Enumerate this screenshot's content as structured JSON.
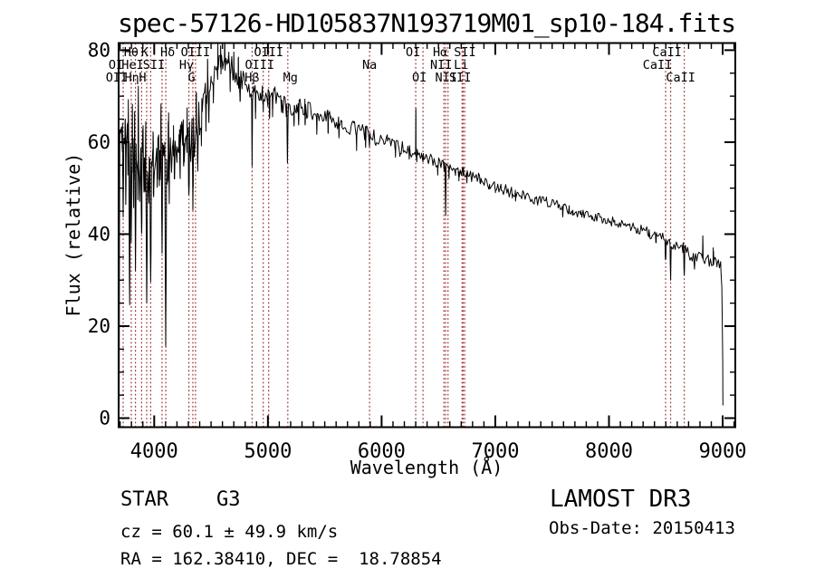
{
  "title": "spec-57126-HD105837N193719M01_sp10-184.fits",
  "colors": {
    "background": "#ffffff",
    "spectrum": "#000000",
    "frame": "#000000",
    "line_marker": "#9e3434"
  },
  "axes": {
    "x": {
      "label": "Wavelength (Å)",
      "major_ticks": [
        4000,
        5000,
        6000,
        7000,
        8000,
        9000
      ],
      "minor_start": 3700,
      "minor_end": 9100,
      "minor_step": 100
    },
    "y": {
      "label": "Flux (relative)",
      "major_ticks": [
        0,
        20,
        40,
        60,
        80
      ],
      "minor_start": 5,
      "minor_end": 80,
      "minor_step": 5
    }
  },
  "spectral_lines": {
    "rows": [
      {
        "y": 62,
        "items": [
          {
            "name": "Hθ",
            "wavelength": 3798,
            "dx": 0
          },
          {
            "name": "K",
            "wavelength": 3934,
            "dx": -2
          },
          {
            "name": "Hδ",
            "wavelength": 4102,
            "dx": 2
          },
          {
            "name": "OIII",
            "wavelength": 4363,
            "dx": 0
          },
          {
            "name": "OIII",
            "wavelength": 5007,
            "dx": 0
          },
          {
            "name": "OI",
            "wavelength": 6300,
            "dx": -3
          },
          {
            "name": "Hα",
            "wavelength": 6563,
            "dx": -6
          },
          {
            "name": "SII",
            "wavelength": 6717,
            "dx": 2
          },
          {
            "name": "CaII",
            "wavelength": 8542,
            "dx": -4
          }
        ]
      },
      {
        "y": 76,
        "items": [
          {
            "name": "OI",
            "wavelength": 3727,
            "dx": -8
          },
          {
            "name": "HeI",
            "wavelength": 3889,
            "dx": -10
          },
          {
            "name": "SII",
            "wavelength": 4069,
            "dx": -9
          },
          {
            "name": "Hγ",
            "wavelength": 4340,
            "dx": -7
          },
          {
            "name": "OIII",
            "wavelength": 4959,
            "dx": -4
          },
          {
            "name": "Na",
            "wavelength": 5894,
            "dx": 0
          },
          {
            "name": "NII",
            "wavelength": 6548,
            "dx": -3
          },
          {
            "name": "Li",
            "wavelength": 6708,
            "dx": -1
          },
          {
            "name": "CaII",
            "wavelength": 8498,
            "dx": -9
          }
        ]
      },
      {
        "y": 90,
        "items": [
          {
            "name": "OII",
            "wavelength": 3727,
            "dx": -7
          },
          {
            "name": "Hη",
            "wavelength": 3835,
            "dx": -4
          },
          {
            "name": "H",
            "wavelength": 3969,
            "dx": -9
          },
          {
            "name": "G",
            "wavelength": 4305,
            "dx": 3
          },
          {
            "name": "Hβ",
            "wavelength": 4861,
            "dx": 0
          },
          {
            "name": "Mg",
            "wavelength": 5175,
            "dx": 3
          },
          {
            "name": "OI",
            "wavelength": 6364,
            "dx": -4
          },
          {
            "name": "NII",
            "wavelength": 6584,
            "dx": -2
          },
          {
            "name": "SII",
            "wavelength": 6731,
            "dx": -5
          },
          {
            "name": "CaII",
            "wavelength": 8662,
            "dx": -4
          }
        ]
      }
    ]
  },
  "chart_data": {
    "type": "line",
    "title": "spec-57126-HD105837N193719M01_sp10-184.fits",
    "xlabel": "Wavelength (Å)",
    "ylabel": "Flux (relative)",
    "xlim": [
      3687,
      9111
    ],
    "ylim": [
      -1.97,
      81.55
    ],
    "range": [
      3692,
      9002
    ],
    "sample_step": 10,
    "continuum_anchors": [
      [
        3692,
        2
      ],
      [
        3694,
        35
      ],
      [
        3697,
        60
      ],
      [
        3720,
        60
      ],
      [
        3760,
        60
      ],
      [
        3800,
        57
      ],
      [
        3840,
        58
      ],
      [
        3880,
        56
      ],
      [
        3920,
        54
      ],
      [
        3960,
        53
      ],
      [
        4000,
        54
      ],
      [
        4040,
        57
      ],
      [
        4080,
        55
      ],
      [
        4120,
        56
      ],
      [
        4160,
        57
      ],
      [
        4200,
        58
      ],
      [
        4250,
        61
      ],
      [
        4300,
        59
      ],
      [
        4350,
        61
      ],
      [
        4400,
        66
      ],
      [
        4450,
        70
      ],
      [
        4500,
        73
      ],
      [
        4550,
        76
      ],
      [
        4600,
        78
      ],
      [
        4650,
        77
      ],
      [
        4700,
        75
      ],
      [
        4750,
        73.5
      ],
      [
        4800,
        72
      ],
      [
        4861,
        70.5
      ],
      [
        4930,
        70.5
      ],
      [
        5000,
        69.5
      ],
      [
        5060,
        70
      ],
      [
        5120,
        68.5
      ],
      [
        5175,
        67
      ],
      [
        5250,
        68
      ],
      [
        5350,
        67
      ],
      [
        5450,
        66
      ],
      [
        5550,
        65
      ],
      [
        5650,
        64
      ],
      [
        5750,
        63
      ],
      [
        5850,
        62
      ],
      [
        5950,
        61
      ],
      [
        6050,
        60
      ],
      [
        6150,
        59
      ],
      [
        6250,
        58
      ],
      [
        6350,
        57
      ],
      [
        6450,
        56
      ],
      [
        6550,
        55
      ],
      [
        6650,
        54
      ],
      [
        6750,
        53
      ],
      [
        6850,
        52
      ],
      [
        6950,
        51
      ],
      [
        7050,
        50
      ],
      [
        7150,
        49
      ],
      [
        7250,
        48.3
      ],
      [
        7350,
        47.5
      ],
      [
        7450,
        47
      ],
      [
        7550,
        46.2
      ],
      [
        7650,
        45.3
      ],
      [
        7750,
        44.6
      ],
      [
        7850,
        43.8
      ],
      [
        7950,
        43.2
      ],
      [
        8050,
        42.6
      ],
      [
        8150,
        41.8
      ],
      [
        8250,
        41.2
      ],
      [
        8350,
        40.5
      ],
      [
        8450,
        39.2
      ],
      [
        8550,
        37.8
      ],
      [
        8650,
        37
      ],
      [
        8750,
        35
      ],
      [
        8850,
        34.2
      ],
      [
        8950,
        33.6
      ],
      [
        8985,
        33
      ],
      [
        8995,
        25
      ],
      [
        9000,
        12
      ],
      [
        9002,
        3
      ]
    ],
    "absorption_features": [
      [
        3727,
        42,
        6
      ],
      [
        3750,
        48,
        5
      ],
      [
        3770,
        50,
        4
      ],
      [
        3784,
        23,
        6
      ],
      [
        3798,
        37,
        5
      ],
      [
        3819,
        47,
        4
      ],
      [
        3835,
        31,
        6
      ],
      [
        3856,
        49,
        4
      ],
      [
        3872,
        46,
        4
      ],
      [
        3889,
        39,
        5
      ],
      [
        3910,
        50,
        4
      ],
      [
        3934,
        24,
        7
      ],
      [
        3952,
        48,
        4
      ],
      [
        3969,
        29,
        7
      ],
      [
        3995,
        47,
        4
      ],
      [
        4026,
        49,
        4
      ],
      [
        4045,
        51,
        4
      ],
      [
        4069,
        36,
        5
      ],
      [
        4101,
        17,
        8
      ],
      [
        4132,
        47,
        4
      ],
      [
        4179,
        51,
        4
      ],
      [
        4227,
        52,
        4
      ],
      [
        4260,
        55,
        4
      ],
      [
        4305,
        49,
        6
      ],
      [
        4340,
        46,
        6
      ],
      [
        4383,
        55,
        4
      ],
      [
        4415,
        59,
        4
      ],
      [
        4455,
        63,
        4
      ],
      [
        4481,
        65,
        4
      ],
      [
        4520,
        69,
        3
      ],
      [
        4668,
        71,
        3
      ],
      [
        4755,
        69,
        3
      ],
      [
        4861,
        55.5,
        4
      ],
      [
        4891,
        65,
        3
      ],
      [
        4959,
        66.5,
        3
      ],
      [
        5015,
        65,
        3
      ],
      [
        5041,
        66,
        3
      ],
      [
        5172,
        55.5,
        6
      ],
      [
        5230,
        64,
        3
      ],
      [
        5270,
        63,
        4
      ],
      [
        5328,
        63,
        3
      ],
      [
        5430,
        62,
        3
      ],
      [
        5530,
        61.5,
        3
      ],
      [
        5625,
        60.5,
        3
      ],
      [
        5780,
        58.5,
        3
      ],
      [
        5860,
        59,
        3
      ],
      [
        5893,
        58.8,
        5
      ],
      [
        6122,
        56.5,
        3
      ],
      [
        6162,
        56.8,
        3
      ],
      [
        6243,
        56,
        3
      ],
      [
        6310,
        56,
        3
      ],
      [
        6364,
        55.5,
        3
      ],
      [
        6494,
        53,
        3
      ],
      [
        6563,
        44.5,
        5
      ],
      [
        6593,
        52.5,
        3
      ],
      [
        6680,
        52,
        3
      ],
      [
        6717,
        53,
        4
      ],
      [
        6750,
        51.5,
        3
      ],
      [
        6870,
        50.5,
        4
      ],
      [
        7000,
        49.5,
        3
      ],
      [
        7180,
        47.5,
        4
      ],
      [
        7594,
        43.8,
        5
      ],
      [
        7680,
        44,
        3
      ],
      [
        8413,
        37.8,
        4
      ],
      [
        8498,
        34,
        5
      ],
      [
        8542,
        30.5,
        5
      ],
      [
        8662,
        31,
        5
      ],
      [
        8752,
        32.5,
        4
      ]
    ],
    "emission_features": [
      [
        3745,
        70,
        3
      ],
      [
        3772,
        68,
        3
      ],
      [
        3808,
        67,
        3
      ],
      [
        3828,
        66,
        2
      ],
      [
        3860,
        68,
        3
      ],
      [
        3900,
        66,
        3
      ],
      [
        3925,
        64,
        2
      ],
      [
        3990,
        64,
        3
      ],
      [
        4060,
        64,
        3
      ],
      [
        4125,
        65,
        3
      ],
      [
        4170,
        64,
        2
      ],
      [
        4218,
        64,
        2
      ],
      [
        4290,
        66,
        2
      ],
      [
        4370,
        67,
        2
      ],
      [
        4470,
        78,
        2
      ],
      [
        4560,
        80,
        2
      ],
      [
        4585,
        79,
        2
      ],
      [
        4620,
        81,
        3
      ],
      [
        4655,
        80,
        2
      ],
      [
        4700,
        79,
        2
      ],
      [
        4740,
        78,
        2
      ],
      [
        6301,
        68,
        2
      ],
      [
        8825,
        38.8,
        3
      ],
      [
        8918,
        36.5,
        3
      ]
    ],
    "noise_regions": [
      [
        3692,
        4450,
        5
      ],
      [
        4450,
        4800,
        3
      ],
      [
        4800,
        5400,
        2.2
      ],
      [
        5400,
        6200,
        1.7
      ],
      [
        6200,
        7200,
        1.3
      ],
      [
        7200,
        8300,
        1.1
      ],
      [
        8300,
        9002,
        1.5
      ]
    ]
  },
  "footer": {
    "class_line": "STAR    G3",
    "cz_line": "cz = 60.1 ± 49.9 km/s",
    "radec_line": "RA = 162.38410, DEC =  18.78854",
    "survey": "LAMOST DR3",
    "obsdate": "Obs-Date: 20150413"
  }
}
